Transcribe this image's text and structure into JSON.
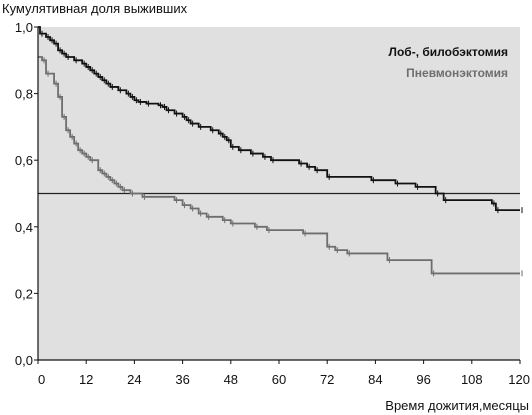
{
  "chart_data": {
    "type": "line",
    "subtype": "kaplan-meier-step",
    "ylabel": "Кумулятивная доля выживших",
    "xlabel": "Время дожития,месяцы",
    "xlim": [
      0,
      120
    ],
    "ylim": [
      0,
      1
    ],
    "x_ticks": [
      "0",
      "12",
      "24",
      "36",
      "48",
      "60",
      "72",
      "84",
      "96",
      "108",
      "120"
    ],
    "y_ticks": [
      "0,0",
      "0,2",
      "0,4",
      "0,6",
      "0,8",
      "1,0"
    ],
    "grid": false,
    "legend_placement": "top-right",
    "reference_line": {
      "y": 0.5
    },
    "colors": {
      "plot_bg": "#e0e0e0",
      "series_1": "#111111",
      "series_2": "#6e6e6e",
      "reference": "#222222"
    },
    "series": [
      {
        "name": "Лоб-, билобэктомия",
        "points": [
          [
            0,
            1.0
          ],
          [
            0.5,
            0.98
          ],
          [
            2,
            0.97
          ],
          [
            3,
            0.96
          ],
          [
            4,
            0.95
          ],
          [
            5,
            0.93
          ],
          [
            6,
            0.92
          ],
          [
            7,
            0.91
          ],
          [
            9,
            0.9
          ],
          [
            11,
            0.89
          ],
          [
            12,
            0.88
          ],
          [
            13,
            0.87
          ],
          [
            14,
            0.86
          ],
          [
            15,
            0.85
          ],
          [
            16,
            0.84
          ],
          [
            17,
            0.83
          ],
          [
            18,
            0.82
          ],
          [
            20,
            0.81
          ],
          [
            22,
            0.8
          ],
          [
            23,
            0.79
          ],
          [
            24,
            0.78
          ],
          [
            25,
            0.775
          ],
          [
            27,
            0.77
          ],
          [
            30,
            0.765
          ],
          [
            31,
            0.76
          ],
          [
            32,
            0.75
          ],
          [
            34,
            0.74
          ],
          [
            36,
            0.73
          ],
          [
            37,
            0.72
          ],
          [
            38,
            0.71
          ],
          [
            40,
            0.7
          ],
          [
            43,
            0.69
          ],
          [
            45,
            0.68
          ],
          [
            46,
            0.67
          ],
          [
            47,
            0.66
          ],
          [
            48,
            0.64
          ],
          [
            50,
            0.63
          ],
          [
            53,
            0.62
          ],
          [
            56,
            0.61
          ],
          [
            58,
            0.6
          ],
          [
            65,
            0.59
          ],
          [
            67,
            0.58
          ],
          [
            69,
            0.57
          ],
          [
            72,
            0.55
          ],
          [
            83,
            0.54
          ],
          [
            89,
            0.53
          ],
          [
            94,
            0.52
          ],
          [
            99,
            0.5
          ],
          [
            101,
            0.48
          ],
          [
            113,
            0.47
          ],
          [
            114,
            0.45
          ],
          [
            120,
            0.45
          ]
        ]
      },
      {
        "name": "Пневмонэктомия",
        "points": [
          [
            0,
            0.91
          ],
          [
            1,
            0.9
          ],
          [
            2,
            0.86
          ],
          [
            4,
            0.83
          ],
          [
            5,
            0.79
          ],
          [
            6,
            0.73
          ],
          [
            7,
            0.69
          ],
          [
            8,
            0.67
          ],
          [
            9,
            0.65
          ],
          [
            10,
            0.63
          ],
          [
            11,
            0.62
          ],
          [
            12,
            0.61
          ],
          [
            13,
            0.6
          ],
          [
            15,
            0.57
          ],
          [
            16,
            0.56
          ],
          [
            17,
            0.55
          ],
          [
            18,
            0.54
          ],
          [
            19,
            0.53
          ],
          [
            20,
            0.52
          ],
          [
            21,
            0.51
          ],
          [
            23,
            0.5
          ],
          [
            26,
            0.49
          ],
          [
            34,
            0.48
          ],
          [
            36,
            0.465
          ],
          [
            38,
            0.455
          ],
          [
            40,
            0.44
          ],
          [
            42,
            0.43
          ],
          [
            46,
            0.42
          ],
          [
            48,
            0.41
          ],
          [
            54,
            0.4
          ],
          [
            57,
            0.39
          ],
          [
            66,
            0.38
          ],
          [
            72,
            0.34
          ],
          [
            74,
            0.33
          ],
          [
            77,
            0.32
          ],
          [
            87,
            0.3
          ],
          [
            98,
            0.26
          ],
          [
            120,
            0.26
          ]
        ]
      }
    ]
  }
}
